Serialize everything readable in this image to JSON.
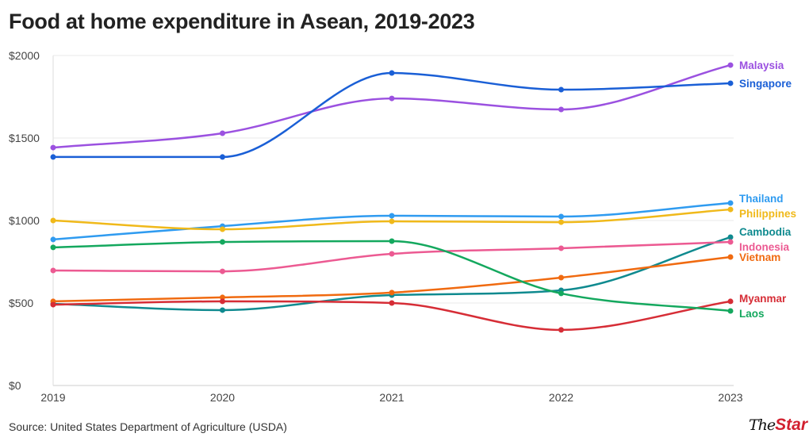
{
  "title": "Food at home expenditure in Asean, 2019-2023",
  "source": "Source: United States Department of Agriculture (USDA)",
  "logo": {
    "the": "The",
    "star": "Star"
  },
  "chart_data": {
    "type": "line",
    "title": "Food at home expenditure in Asean, 2019-2023",
    "x": [
      2019,
      2020,
      2021,
      2022,
      2023
    ],
    "x_tick_labels": [
      "2019",
      "2020",
      "2021",
      "2022",
      "2023"
    ],
    "y_tick_labels": [
      "$0",
      "$500",
      "$1000",
      "$1500",
      "$2000"
    ],
    "y_ticks": [
      0,
      500,
      1000,
      1500,
      2000
    ],
    "ylim": [
      0,
      2000
    ],
    "grid": "horizontal",
    "legend": "direct labels at right",
    "series": [
      {
        "name": "Malaysia",
        "color": "#9b51e0",
        "values": [
          1442,
          1529,
          1740,
          1673,
          1942
        ]
      },
      {
        "name": "Singapore",
        "color": "#1a5fd6",
        "values": [
          1385,
          1385,
          1894,
          1793,
          1832
        ]
      },
      {
        "name": "Thailand",
        "color": "#2f9bf0",
        "values": [
          885,
          966,
          1029,
          1024,
          1106
        ]
      },
      {
        "name": "Philippines",
        "color": "#f0b91a",
        "values": [
          1000,
          947,
          995,
          990,
          1067
        ]
      },
      {
        "name": "Cambodia",
        "color": "#0f8a8f",
        "values": [
          495,
          457,
          548,
          577,
          899
        ]
      },
      {
        "name": "Indonesia",
        "color": "#ec5a92",
        "values": [
          697,
          692,
          798,
          832,
          870
        ]
      },
      {
        "name": "Vietnam",
        "color": "#f06a10",
        "values": [
          510,
          534,
          563,
          654,
          779
        ]
      },
      {
        "name": "Myanmar",
        "color": "#d62d36",
        "values": [
          490,
          510,
          500,
          337,
          510
        ]
      },
      {
        "name": "Laos",
        "color": "#14a85e",
        "values": [
          837,
          870,
          875,
          558,
          452
        ]
      }
    ]
  }
}
